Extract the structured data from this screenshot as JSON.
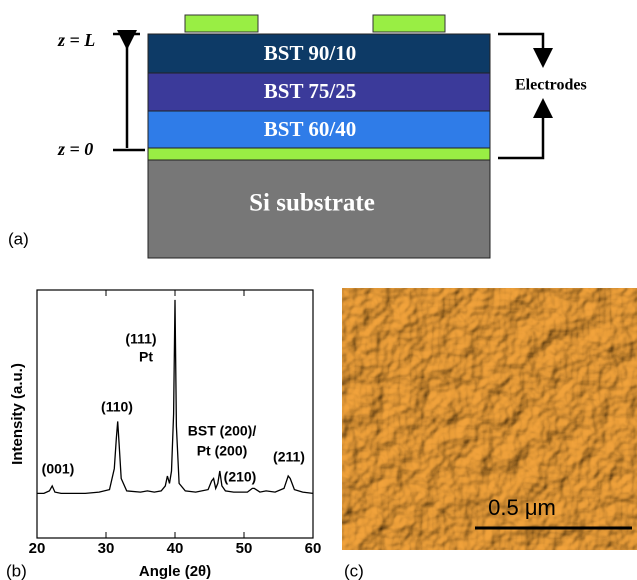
{
  "diagram": {
    "layers": [
      "BST 90/10",
      "BST 75/25",
      "BST 60/40",
      "Si substrate"
    ],
    "z_top": "z = L",
    "z_bottom": "z = 0",
    "electrodes": "Electrodes",
    "panel": "(a)"
  },
  "chart_data": {
    "type": "line",
    "panel": "(b)",
    "x_label": "Angle (2θ)",
    "y_label": "Intensity (a.u.)",
    "x": [
      20,
      21,
      21.8,
      22.2,
      22.6,
      23.5,
      25,
      27,
      29,
      30.5,
      31.2,
      31.5,
      31.7,
      31.9,
      32.2,
      33,
      35,
      36,
      37,
      38,
      38.6,
      38.9,
      39.2,
      39.5,
      39.8,
      40,
      40.2,
      40.6,
      41.5,
      43,
      44.8,
      45.3,
      45.6,
      45.9,
      46.2,
      46.5,
      46.8,
      47.3,
      48.5,
      50.5,
      51.2,
      51.5,
      52.3,
      53.2,
      54.5,
      55.8,
      56.4,
      56.7,
      57.3,
      58.5,
      60
    ],
    "values": [
      18,
      18,
      19,
      21,
      18.5,
      18,
      18,
      18,
      18.5,
      19.5,
      28,
      40,
      47,
      38,
      24,
      19,
      18.5,
      19,
      18.5,
      19,
      21,
      25,
      22,
      27,
      50,
      96,
      45,
      22,
      19,
      18.5,
      19.5,
      23,
      24,
      20,
      22,
      27,
      21,
      19,
      18.5,
      18.5,
      20,
      20,
      18.5,
      19,
      18.5,
      20,
      25,
      24,
      19.5,
      18.5,
      18
    ],
    "color": "#000000",
    "xlim": [
      20,
      60
    ],
    "xticks": [
      20,
      30,
      40,
      50,
      60
    ],
    "ylim": [
      0,
      100
    ],
    "annotations": [
      "(001)",
      "(110)",
      "(111)",
      "Pt",
      "BST (200)/",
      "Pt (200)",
      "(210)",
      "(211)"
    ]
  },
  "image": {
    "scale_bar": "0.5 μm",
    "panel": "(c)"
  }
}
